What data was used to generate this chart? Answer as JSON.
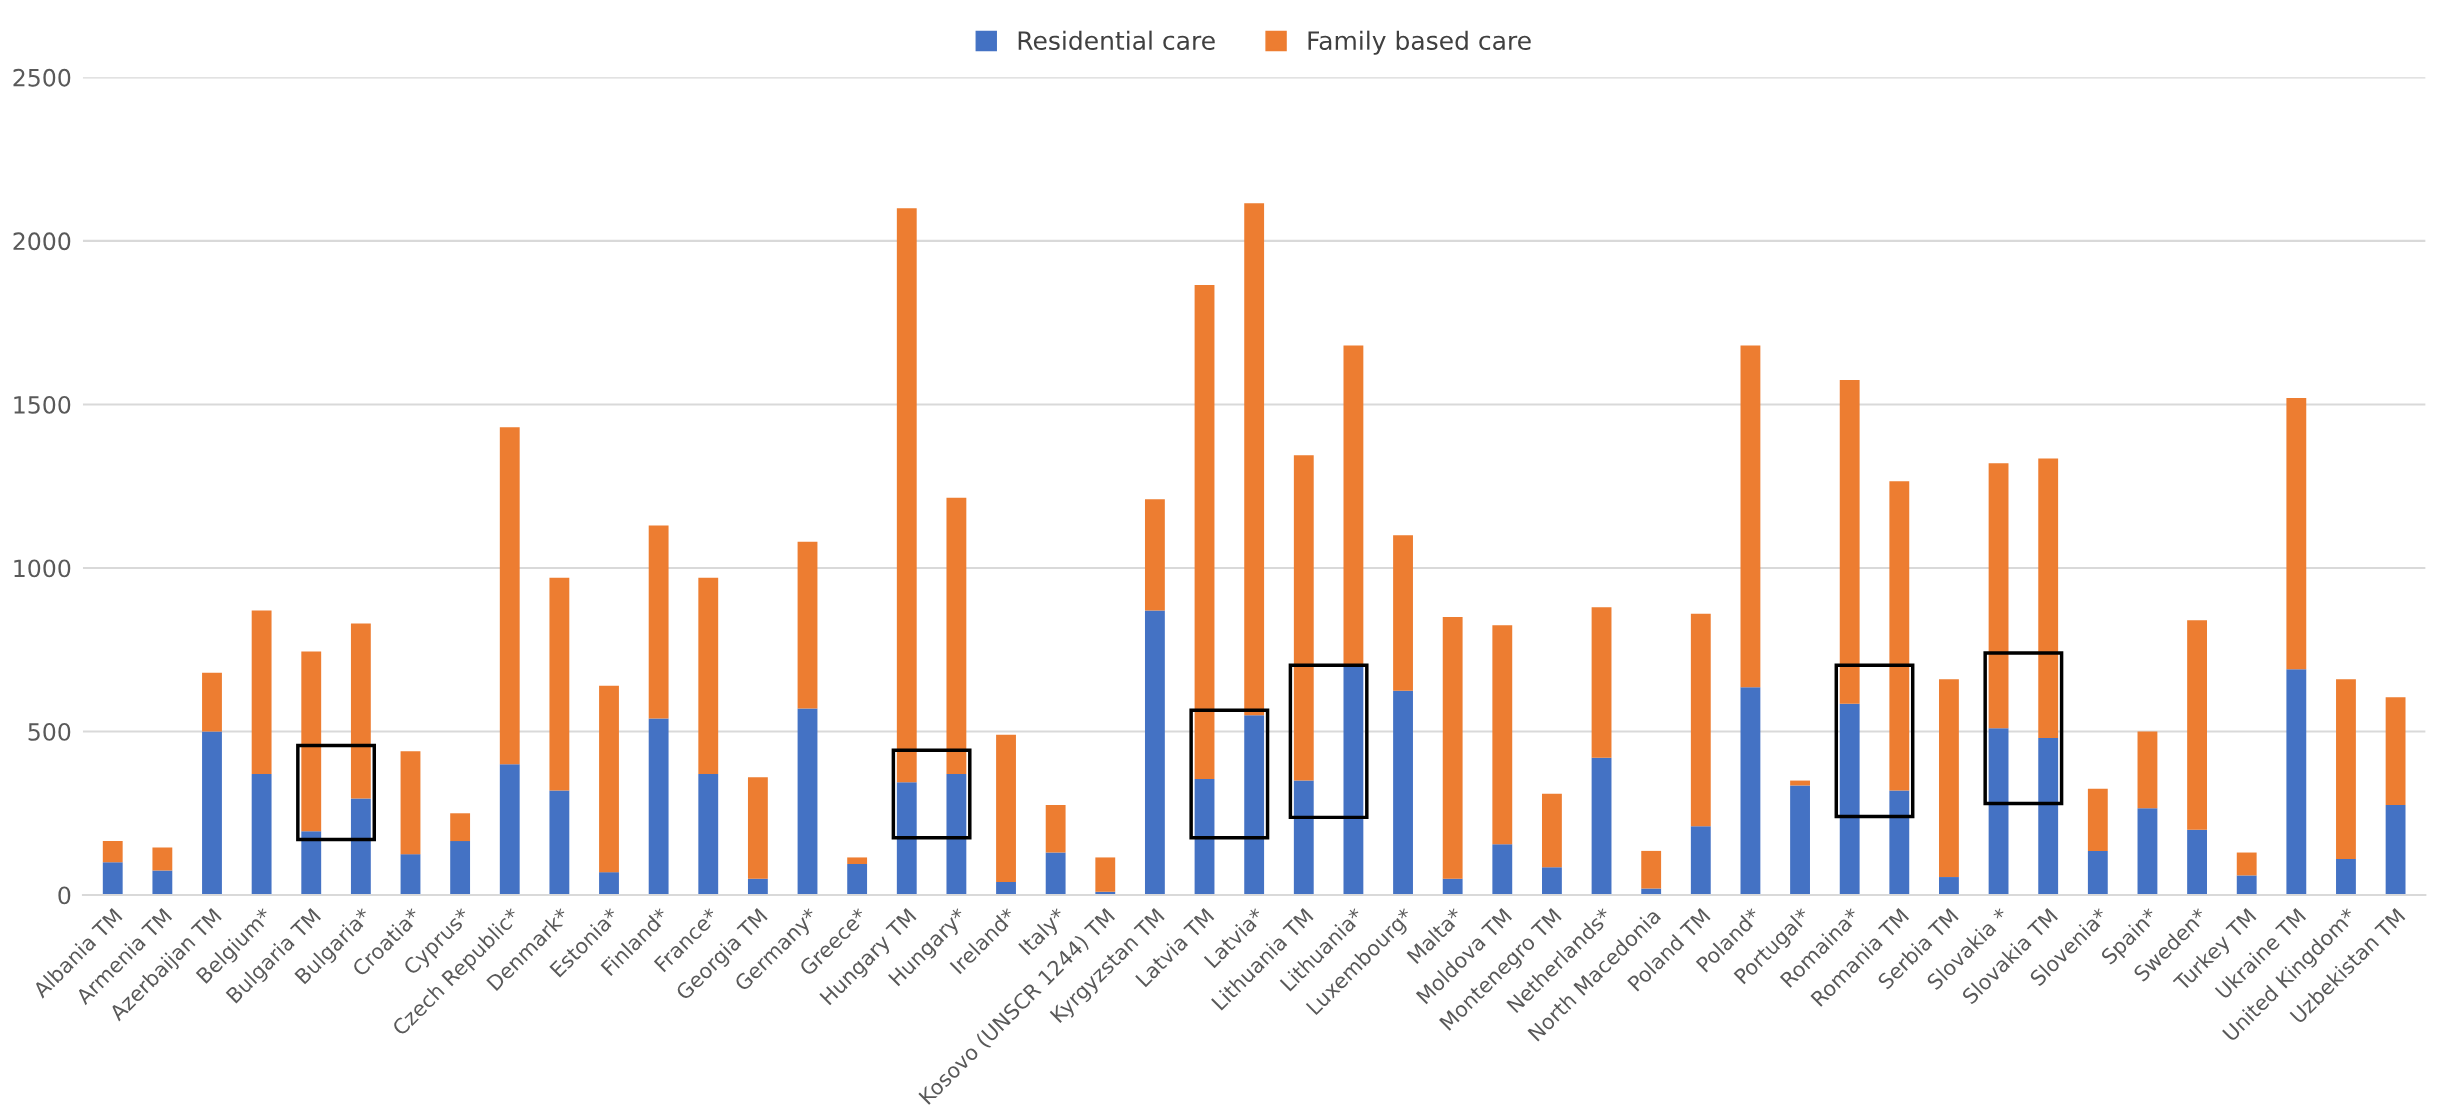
{
  "chart_data": {
    "type": "bar",
    "stacked": true,
    "categories": [
      "Albania TM",
      "Armenia TM",
      "Azerbaijan TM",
      "Belgium*",
      "Bulgaria TM",
      "Bulgaria*",
      "Croatia*",
      "Cyprus*",
      "Czech Republic*",
      "Denmark*",
      "Estonia*",
      "Finland*",
      "France*",
      "Georgia TM",
      "Germany*",
      "Greece*",
      "Hungary TM",
      "Hungary*",
      "Ireland*",
      "Italy*",
      "Kosovo (UNSCR 1244) TM",
      "Kyrgyzstan TM",
      "Latvia TM",
      "Latvia*",
      "Lithuania TM",
      "Lithuania*",
      "Luxembourg*",
      "Malta*",
      "Moldova TM",
      "Montenegro TM",
      "Netherlands*",
      "North Macedonia",
      "Poland TM",
      "Poland*",
      "Portugal*",
      "Romaina*",
      "Romania TM",
      "Serbia TM",
      "Slovakia *",
      "Slovakia TM",
      "Slovenia*",
      "Spain*",
      "Sweden*",
      "Turkey TM",
      "Ukraine TM",
      "United Kingdom*",
      "Uzbekistan TM"
    ],
    "series": [
      {
        "name": "Residential care",
        "color": "#4472c4",
        "values": [
          100,
          75,
          500,
          370,
          195,
          295,
          125,
          165,
          400,
          320,
          70,
          540,
          370,
          50,
          570,
          95,
          345,
          370,
          40,
          130,
          10,
          870,
          355,
          550,
          350,
          700,
          625,
          50,
          155,
          85,
          420,
          20,
          210,
          635,
          335,
          585,
          320,
          55,
          510,
          480,
          135,
          265,
          200,
          60,
          690,
          110,
          275
        ]
      },
      {
        "name": "Family based care",
        "color": "#ed7d31",
        "values": [
          65,
          70,
          180,
          500,
          550,
          535,
          315,
          85,
          1030,
          650,
          570,
          590,
          600,
          310,
          510,
          20,
          1755,
          845,
          450,
          145,
          105,
          340,
          1510,
          1565,
          995,
          980,
          475,
          800,
          670,
          225,
          460,
          115,
          650,
          1045,
          15,
          990,
          945,
          605,
          810,
          855,
          190,
          235,
          640,
          70,
          830,
          550,
          330
        ]
      }
    ],
    "ylim": [
      0,
      2500
    ],
    "yticks": [
      0,
      500,
      1000,
      1500,
      2000,
      2500
    ],
    "grid": "y",
    "legend": "top"
  }
}
